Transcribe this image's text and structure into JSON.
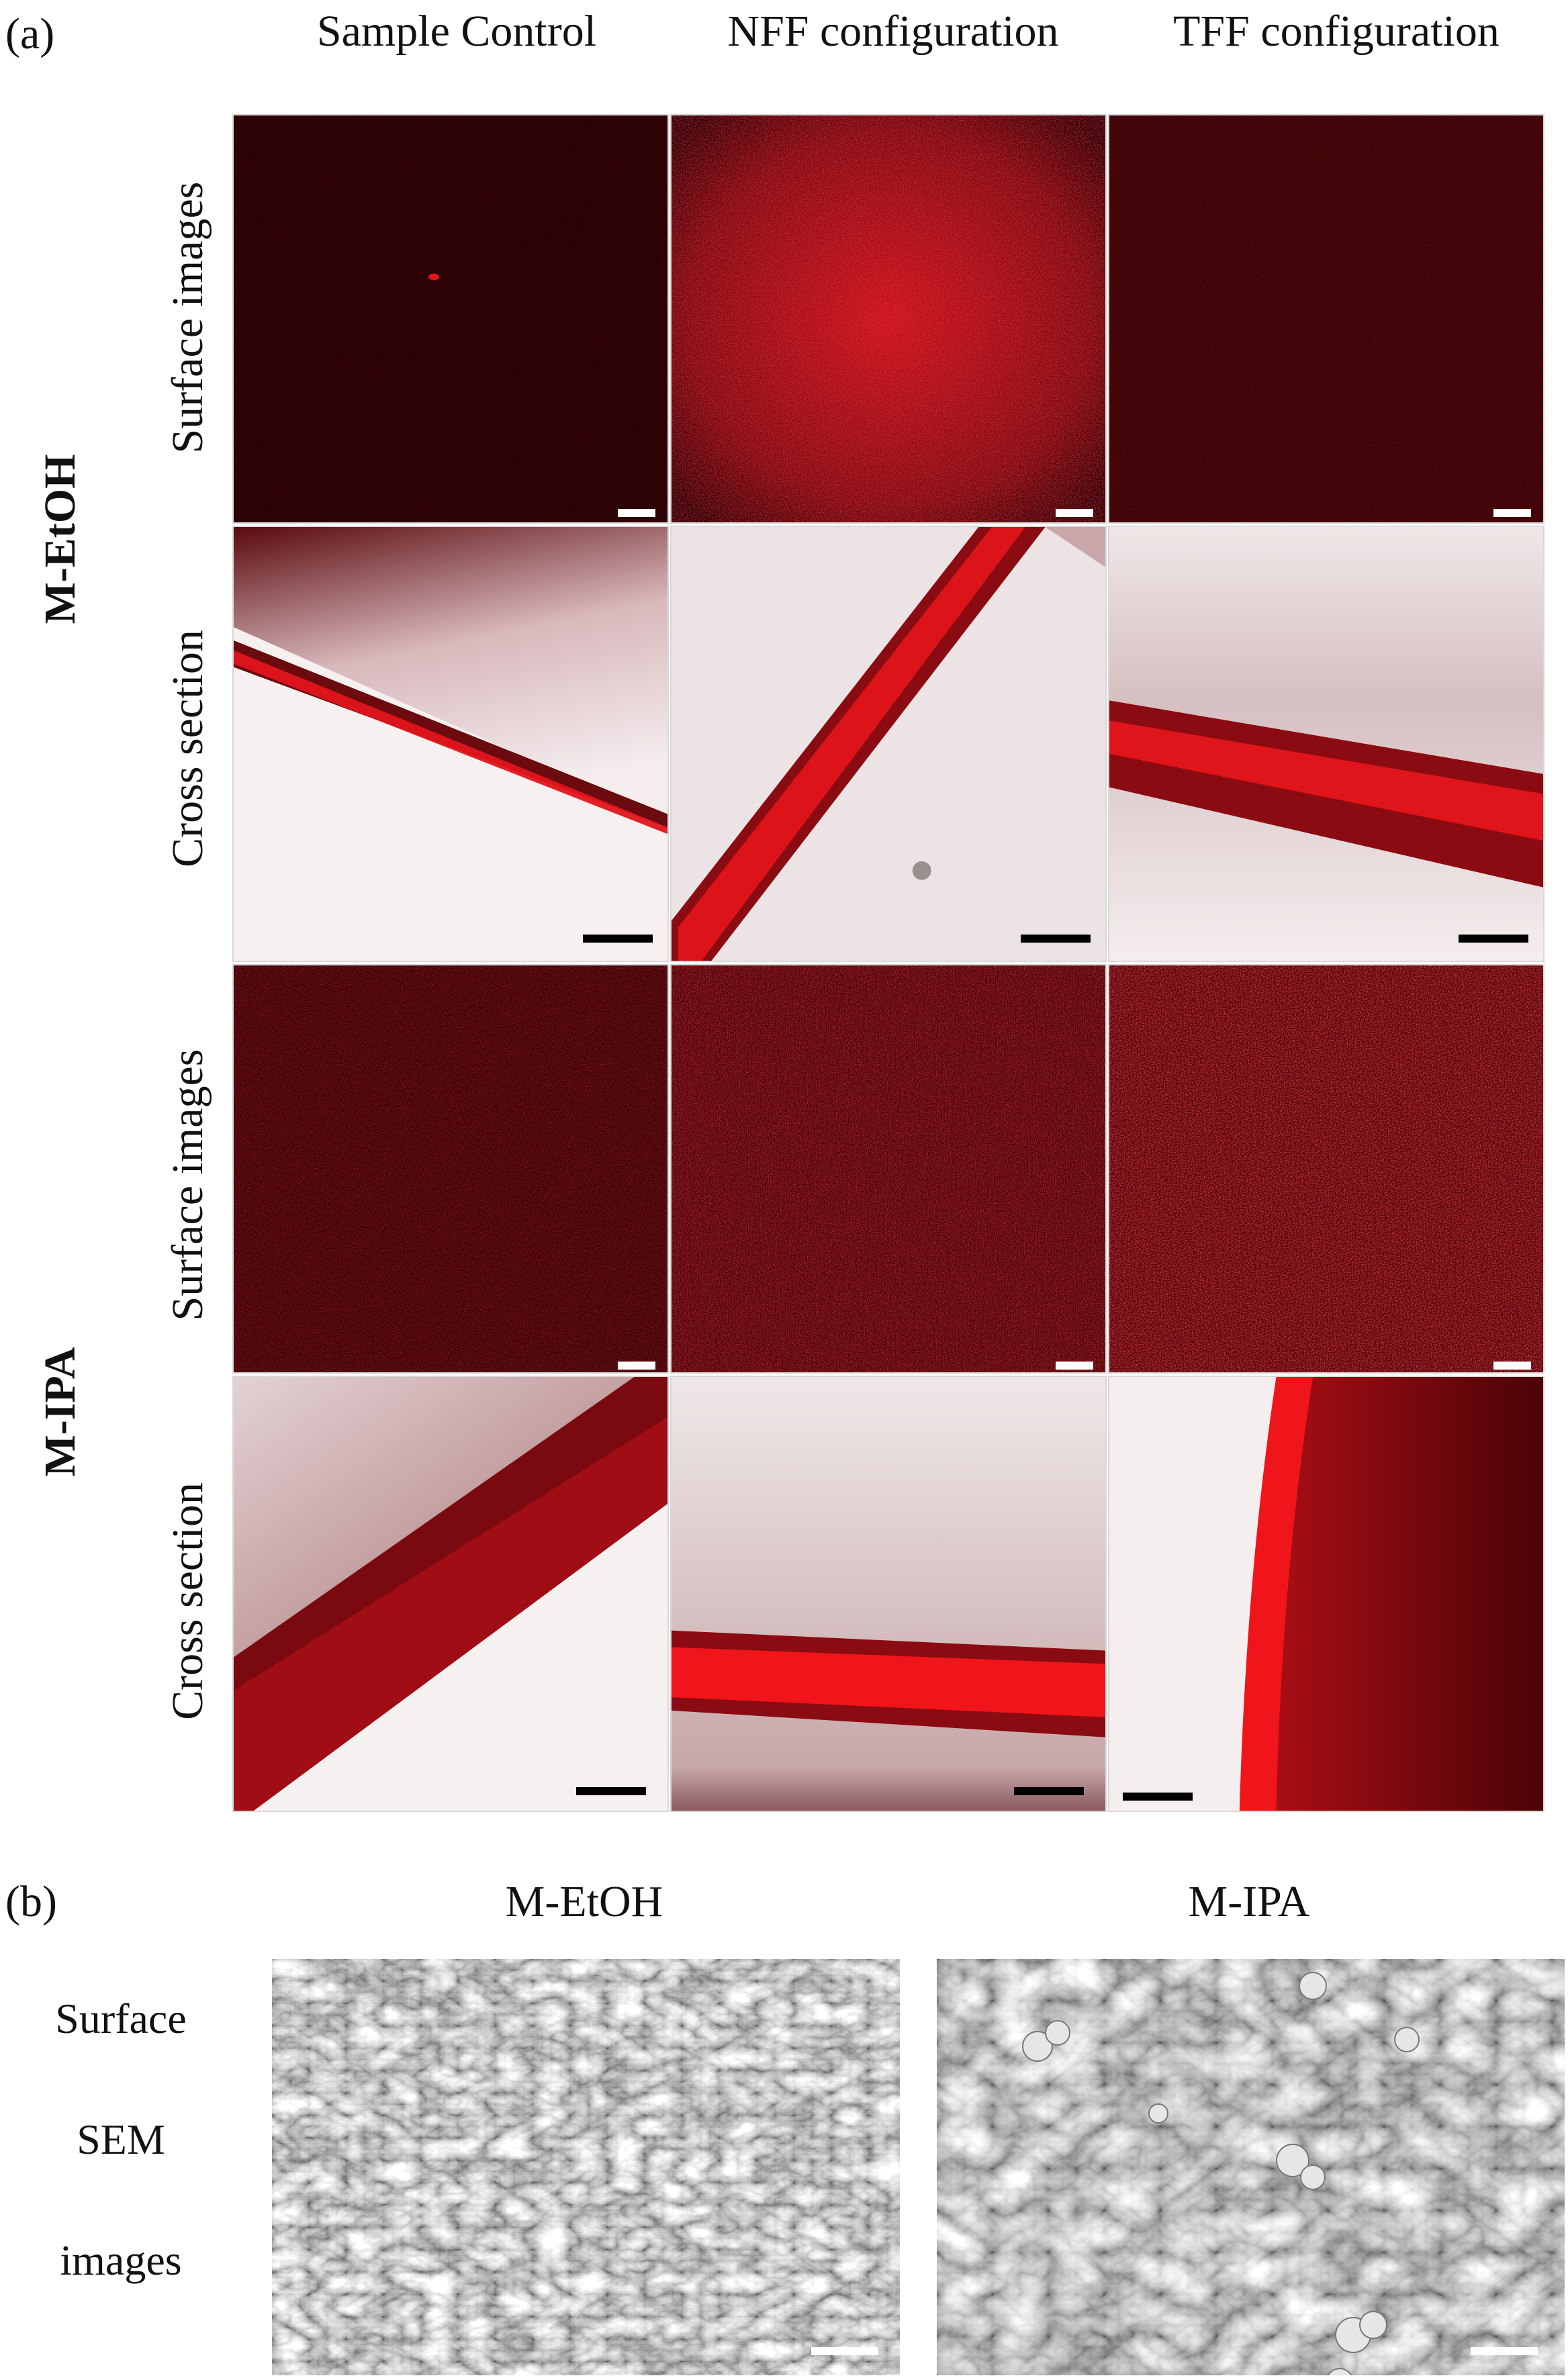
{
  "panel_a": {
    "label": "(a)",
    "columns": [
      "Sample Control",
      "NFF configuration",
      "TFF configuration"
    ],
    "groups": [
      {
        "name": "M-EtOH",
        "rows": [
          "Surface images",
          "Cross section"
        ]
      },
      {
        "name": "M-IPA",
        "rows": [
          "Surface images",
          "Cross section"
        ]
      }
    ]
  },
  "panel_b": {
    "label": "(b)",
    "columns": [
      "M-EtOH",
      "M-IPA"
    ],
    "row_label": {
      "line1": "Surface",
      "line2": "SEM",
      "line3": "images"
    }
  },
  "colors": {
    "fluorescence_red": "#e0151b",
    "dark_background": "#2a0205",
    "bright_field": "#f2e9ea",
    "sem_gray": "#9a9a9a"
  }
}
